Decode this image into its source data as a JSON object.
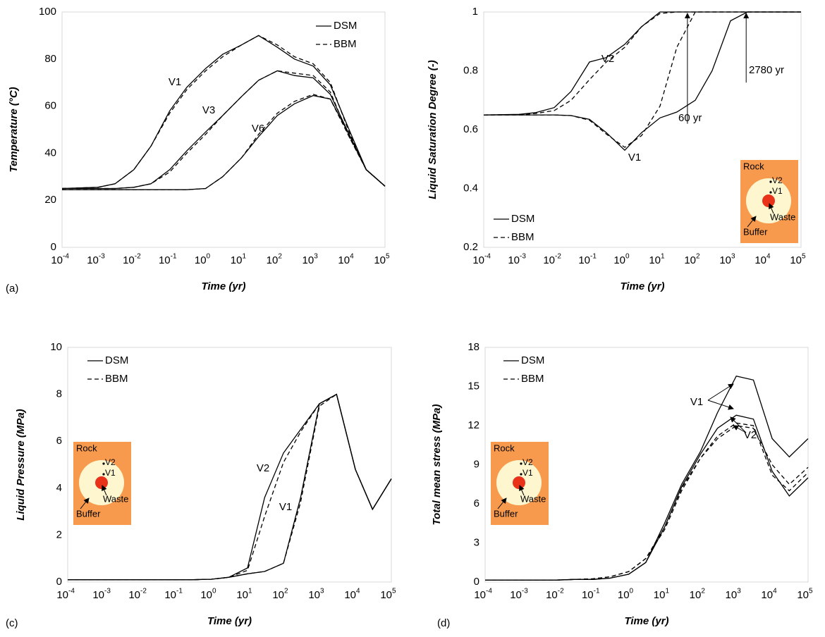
{
  "chart_data": [
    {
      "type": "line",
      "panel_label": "(a)",
      "x_label": "Time (yr)",
      "y_label": "Temperature (°C)",
      "xscale": "log",
      "color": "#000000",
      "xlim": [
        0.0001,
        100000
      ],
      "xticks": [
        {
          "value": 0.0001,
          "label": "10",
          "exponent": "-4"
        },
        {
          "value": 0.001,
          "label": "10",
          "exponent": "-3"
        },
        {
          "value": 0.01,
          "label": "10",
          "exponent": "-2"
        },
        {
          "value": 0.1,
          "label": "10",
          "exponent": "-1"
        },
        {
          "value": 1,
          "label": "10",
          "exponent": "0"
        },
        {
          "value": 10,
          "label": "10",
          "exponent": "1"
        },
        {
          "value": 100,
          "label": "10",
          "exponent": "2"
        },
        {
          "value": 1000,
          "label": "10",
          "exponent": "3"
        },
        {
          "value": 10000,
          "label": "10",
          "exponent": "4"
        },
        {
          "value": 100000,
          "label": "10",
          "exponent": "5"
        }
      ],
      "ylim": [
        0,
        100
      ],
      "yticks": [
        0,
        20,
        40,
        60,
        80,
        100
      ],
      "legend": [
        "DSM",
        "BBM"
      ],
      "x": [
        0.0001,
        0.001,
        0.003,
        0.01,
        0.03,
        0.1,
        0.3,
        1,
        3,
        10,
        30,
        100,
        300,
        1000,
        3000,
        10000,
        30000,
        100000
      ],
      "series": [
        {
          "name": "V1",
          "values": [
            [
              25,
              25.5,
              27,
              33,
              43,
              58,
              68,
              76,
              82,
              86,
              90,
              85,
              80,
              77,
              69,
              50,
              33,
              26
            ],
            [
              25,
              25.5,
              27,
              33,
              43,
              57,
              67,
              75,
              81,
              86,
              90,
              86,
              81,
              78,
              70,
              49,
              33,
              26
            ]
          ]
        },
        {
          "name": "V3",
          "values": [
            [
              25,
              25,
              25,
              25.5,
              27,
              33,
              41,
              49,
              56,
              64,
              71,
              75,
              73,
              72,
              65,
              48,
              33,
              26
            ],
            [
              25,
              25,
              25,
              25.5,
              27,
              32,
              40,
              48,
              56,
              64,
              71,
              75,
              74,
              73,
              66,
              47,
              33,
              26
            ]
          ]
        },
        {
          "name": "V6",
          "values": [
            [
              24.5,
              24.5,
              24.5,
              24.5,
              24.5,
              24.5,
              24.5,
              25,
              30,
              38,
              47,
              56,
              61,
              64.5,
              63,
              48,
              33,
              26
            ],
            [
              24.5,
              24.5,
              24.5,
              24.5,
              24.5,
              24.5,
              24.5,
              25,
              30,
              38,
              48,
              57,
              62,
              65,
              63,
              47,
              33,
              26
            ]
          ]
        }
      ]
    },
    {
      "type": "line",
      "panel_label": "(b)",
      "x_label": "Time (yr)",
      "y_label": "Liquid Saturation Degree (-)",
      "xscale": "log",
      "color": "#000000",
      "xlim": [
        0.0001,
        100000
      ],
      "xticks": [
        {
          "value": 0.0001,
          "label": "10",
          "exponent": "-4"
        },
        {
          "value": 0.001,
          "label": "10",
          "exponent": "-3"
        },
        {
          "value": 0.01,
          "label": "10",
          "exponent": "-2"
        },
        {
          "value": 0.1,
          "label": "10",
          "exponent": "-1"
        },
        {
          "value": 1,
          "label": "10",
          "exponent": "0"
        },
        {
          "value": 10,
          "label": "10",
          "exponent": "1"
        },
        {
          "value": 100,
          "label": "10",
          "exponent": "2"
        },
        {
          "value": 1000,
          "label": "10",
          "exponent": "3"
        },
        {
          "value": 10000,
          "label": "10",
          "exponent": "4"
        },
        {
          "value": 100000,
          "label": "10",
          "exponent": "5"
        }
      ],
      "ylim": [
        0.2,
        1
      ],
      "yticks": [
        0.2,
        0.4,
        0.6,
        0.8,
        1
      ],
      "legend": [
        "DSM",
        "BBM"
      ],
      "x": [
        0.0001,
        0.001,
        0.003,
        0.01,
        0.03,
        0.1,
        0.3,
        1,
        3,
        10,
        30,
        100,
        300,
        1000,
        3000,
        10000,
        30000,
        100000
      ],
      "series": [
        {
          "name": "V2",
          "values": [
            [
              0.65,
              0.652,
              0.658,
              0.675,
              0.73,
              0.83,
              0.845,
              0.89,
              0.95,
              1,
              1,
              1,
              1,
              1,
              1,
              1,
              1,
              1
            ],
            [
              0.65,
              0.651,
              0.655,
              0.665,
              0.7,
              0.77,
              0.83,
              0.88,
              0.95,
              0.995,
              1,
              1,
              1,
              1,
              1,
              1,
              1,
              1
            ]
          ]
        },
        {
          "name": "V1",
          "values": [
            [
              0.65,
              0.65,
              0.65,
              0.65,
              0.648,
              0.635,
              0.59,
              0.53,
              0.59,
              0.64,
              0.66,
              0.7,
              0.8,
              0.97,
              1,
              1,
              1,
              1
            ],
            [
              0.65,
              0.65,
              0.65,
              0.65,
              0.648,
              0.632,
              0.585,
              0.54,
              0.58,
              0.68,
              0.88,
              1,
              1,
              1,
              1,
              1,
              1,
              1
            ]
          ]
        }
      ],
      "annotations": [
        {
          "text": "60 yr",
          "x": 60
        },
        {
          "text": "2780 yr",
          "x": 2780
        }
      ],
      "inset": {
        "rock": "Rock",
        "v2": "V2",
        "v1": "V1",
        "waste": "Waste",
        "buffer": "Buffer"
      }
    },
    {
      "type": "line",
      "panel_label": "(c)",
      "x_label": "Time (yr)",
      "y_label": "Liquid Pressure (MPa)",
      "xscale": "log",
      "color": "#000000",
      "xlim": [
        0.0001,
        100000
      ],
      "xticks": [
        {
          "value": 0.0001,
          "label": "10",
          "exponent": "-4"
        },
        {
          "value": 0.001,
          "label": "10",
          "exponent": "-3"
        },
        {
          "value": 0.01,
          "label": "10",
          "exponent": "-2"
        },
        {
          "value": 0.1,
          "label": "10",
          "exponent": "-1"
        },
        {
          "value": 1,
          "label": "10",
          "exponent": "0"
        },
        {
          "value": 10,
          "label": "10",
          "exponent": "1"
        },
        {
          "value": 100,
          "label": "10",
          "exponent": "2"
        },
        {
          "value": 1000,
          "label": "10",
          "exponent": "3"
        },
        {
          "value": 10000,
          "label": "10",
          "exponent": "4"
        },
        {
          "value": 100000,
          "label": "10",
          "exponent": "5"
        }
      ],
      "ylim": [
        0,
        10
      ],
      "yticks": [
        0,
        2,
        4,
        6,
        8,
        10
      ],
      "legend": [
        "DSM",
        "BBM"
      ],
      "x": [
        0.0001,
        0.001,
        0.003,
        0.01,
        0.03,
        0.1,
        0.3,
        1,
        3,
        10,
        30,
        100,
        300,
        1000,
        3000,
        10000,
        30000,
        100000
      ],
      "series": [
        {
          "name": "V2",
          "values": [
            [
              0.1,
              0.1,
              0.1,
              0.1,
              0.1,
              0.1,
              0.1,
              0.12,
              0.2,
              0.6,
              3.6,
              5.5,
              6.5,
              7.6,
              8,
              4.8,
              3.1,
              4.4
            ],
            [
              0.1,
              0.1,
              0.1,
              0.1,
              0.1,
              0.1,
              0.1,
              0.12,
              0.2,
              0.5,
              2.8,
              5.1,
              6.4,
              7.6,
              8,
              4.8,
              3.1,
              4.4
            ]
          ]
        },
        {
          "name": "V1",
          "values": [
            [
              0.1,
              0.1,
              0.1,
              0.1,
              0.1,
              0.1,
              0.1,
              0.12,
              0.2,
              0.35,
              0.45,
              0.8,
              3.6,
              7.6,
              8,
              4.8,
              3.1,
              4.4
            ],
            [
              0.1,
              0.1,
              0.1,
              0.1,
              0.1,
              0.1,
              0.1,
              0.12,
              0.2,
              0.35,
              0.45,
              0.8,
              3.4,
              7.5,
              8,
              4.8,
              3.1,
              4.4
            ]
          ]
        }
      ],
      "inset": {
        "rock": "Rock",
        "v2": "V2",
        "v1": "V1",
        "waste": "Waste",
        "buffer": "Buffer"
      }
    },
    {
      "type": "line",
      "panel_label": "(d)",
      "x_label": "Time (yr)",
      "y_label": "Total mean stress  (MPa)",
      "xscale": "log",
      "color": "#000000",
      "xlim": [
        0.0001,
        100000
      ],
      "xticks": [
        {
          "value": 0.0001,
          "label": "10",
          "exponent": "-4"
        },
        {
          "value": 0.001,
          "label": "10",
          "exponent": "-3"
        },
        {
          "value": 0.01,
          "label": "10",
          "exponent": "-2"
        },
        {
          "value": 0.1,
          "label": "10",
          "exponent": "-1"
        },
        {
          "value": 1,
          "label": "10",
          "exponent": "0"
        },
        {
          "value": 10,
          "label": "10",
          "exponent": "1"
        },
        {
          "value": 100,
          "label": "10",
          "exponent": "2"
        },
        {
          "value": 1000,
          "label": "10",
          "exponent": "3"
        },
        {
          "value": 10000,
          "label": "10",
          "exponent": "4"
        },
        {
          "value": 100000,
          "label": "10",
          "exponent": "5"
        }
      ],
      "ylim": [
        0,
        18
      ],
      "yticks": [
        0,
        3,
        6,
        9,
        12,
        15,
        18
      ],
      "legend": [
        "DSM",
        "BBM"
      ],
      "x": [
        0.0001,
        0.001,
        0.003,
        0.01,
        0.03,
        0.1,
        0.3,
        1,
        3,
        10,
        30,
        100,
        300,
        1000,
        3000,
        10000,
        30000,
        100000
      ],
      "series": [
        {
          "name": "V1",
          "values": [
            [
              0.15,
              0.15,
              0.15,
              0.15,
              0.2,
              0.2,
              0.3,
              0.6,
              1.5,
              4.5,
              7.5,
              10,
              13,
              15.8,
              15.5,
              11,
              9.6,
              11
            ],
            [
              0.15,
              0.15,
              0.15,
              0.15,
              0.2,
              0.25,
              0.4,
              0.8,
              1.8,
              4.2,
              7.2,
              9.5,
              11,
              12,
              11.8,
              9,
              7.5,
              8.8
            ]
          ]
        },
        {
          "name": "V2",
          "values": [
            [
              0.15,
              0.15,
              0.15,
              0.15,
              0.2,
              0.2,
              0.3,
              0.6,
              1.5,
              4.2,
              7.3,
              9.8,
              11.8,
              12.8,
              12.5,
              8.5,
              6.6,
              8
            ],
            [
              0.15,
              0.15,
              0.15,
              0.15,
              0.2,
              0.25,
              0.4,
              0.8,
              1.8,
              4,
              7,
              9.5,
              11.2,
              12.2,
              12,
              8.2,
              7,
              8.4
            ]
          ]
        }
      ],
      "inset": {
        "rock": "Rock",
        "v2": "V2",
        "v1": "V1",
        "waste": "Waste",
        "buffer": "Buffer"
      }
    }
  ]
}
